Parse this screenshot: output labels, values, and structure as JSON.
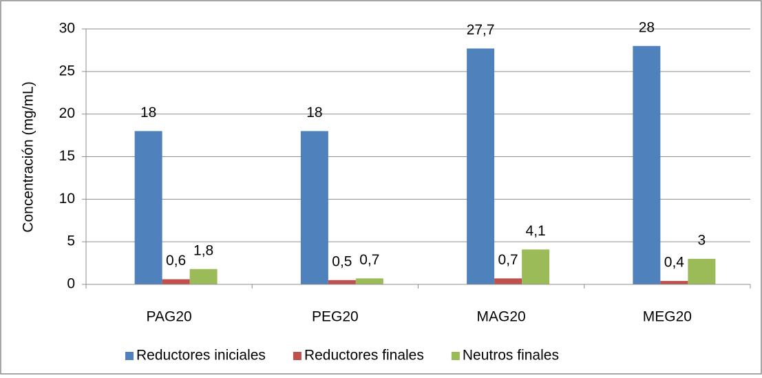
{
  "chart_data": {
    "type": "bar",
    "y_label": "Concentración (mg/mL)",
    "categories": [
      "PAG20",
      "PEG20",
      "MAG20",
      "MEG20"
    ],
    "series": [
      {
        "name": "Reductores iniciales",
        "color": "#4f81bd",
        "values": [
          18,
          18,
          27.7,
          28
        ],
        "value_labels": [
          "18",
          "18",
          "27,7",
          "28"
        ]
      },
      {
        "name": "Reductores finales",
        "color": "#c0504d",
        "values": [
          0.6,
          0.5,
          0.7,
          0.4
        ],
        "value_labels": [
          "0,6",
          "0,5",
          "0,7",
          "0,4"
        ]
      },
      {
        "name": "Neutros finales",
        "color": "#9bbb59",
        "values": [
          1.8,
          0.7,
          4.1,
          3
        ],
        "value_labels": [
          "1,8",
          "0,7",
          "4,1",
          "3"
        ]
      }
    ],
    "ylim": [
      0,
      30
    ],
    "yticks": [
      0,
      5,
      10,
      15,
      20,
      25,
      30
    ],
    "grid": true,
    "legend": "bottom"
  }
}
